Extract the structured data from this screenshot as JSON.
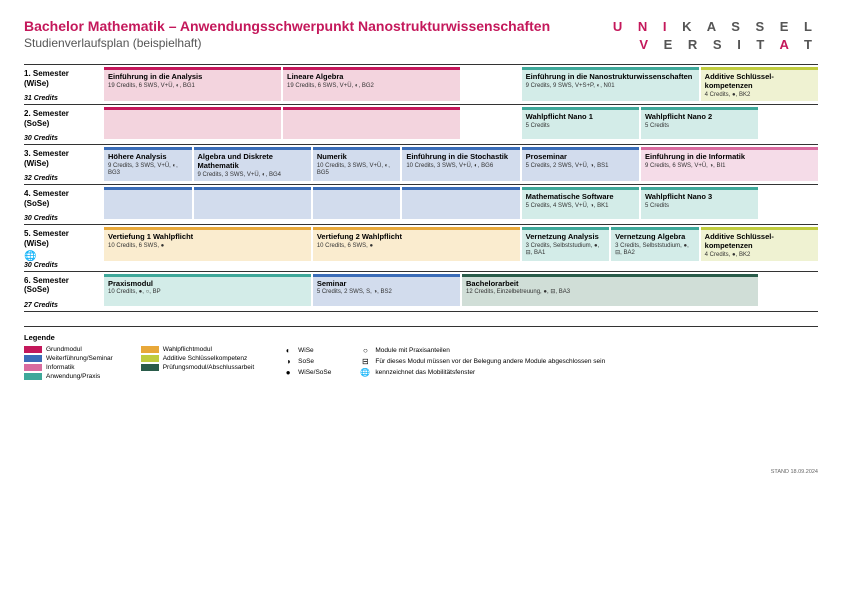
{
  "header": {
    "title": "Bachelor Mathematik – Anwendungsschwerpunkt Nanostrukturwissenschaften",
    "subtitle": "Studienverlaufsplan (beispielhaft)",
    "logo_line1": "UNIKASSEL",
    "logo_line2": "VERSITÄT"
  },
  "colors": {
    "grund": "#c4185b",
    "grund_bg": "#f3d4de",
    "weiter": "#3b6db8",
    "weiter_bg": "#d2dced",
    "informatik": "#d96b9f",
    "informatik_bg": "#f5dce8",
    "anwendung": "#3fa89a",
    "anwendung_bg": "#d3ece8",
    "wahlpflicht": "#e8a83a",
    "wahlpflicht_bg": "#faeccf",
    "additive": "#c0cc3f",
    "additive_bg": "#eff2d2",
    "pruefung": "#2a5c4a",
    "pruefung_bg": "#d0ded7"
  },
  "stand": "STAND 18.09.2024",
  "legend": {
    "title": "Legende",
    "cats": [
      {
        "c": "grund",
        "t": "Grundmodul"
      },
      {
        "c": "weiter",
        "t": "Weiterführung/Seminar"
      },
      {
        "c": "informatik",
        "t": "Informatik"
      },
      {
        "c": "anwendung",
        "t": "Anwendung/Praxis"
      },
      {
        "c": "wahlpflicht",
        "t": "Wahlpflichtmodul"
      },
      {
        "c": "additive",
        "t": "Additive Schlüsselkompetenz"
      },
      {
        "c": "pruefung",
        "t": "Prüfungsmodul/Abschlussarbeit"
      }
    ],
    "syms1": [
      {
        "s": "◐",
        "t": "WiSe"
      },
      {
        "s": "◑",
        "t": "SoSe"
      },
      {
        "s": "●",
        "t": "WiSe/SoSe"
      }
    ],
    "syms2": [
      {
        "s": "○",
        "t": "Module mit Praxisanteilen"
      },
      {
        "s": "⊟",
        "t": "Für dieses Modul müssen vor der Belegung andere Module abgeschlossen sein"
      },
      {
        "s": "🌐",
        "t": "kennzeichnet das Mobilitätsfenster"
      }
    ]
  },
  "rows": [
    {
      "sem": "1. Semester\n(WiSe)",
      "credits": "31 Credits",
      "mods": [
        {
          "col": "1/7",
          "cat": "grund",
          "t": "Einführung in die Analysis",
          "d": "19 Credits, 6 SWS, V+Ü, ◐, BG1"
        },
        {
          "col": "7/13",
          "cat": "grund",
          "t": "Lineare Algebra",
          "d": "19 Credits, 6 SWS, V+Ü, ◐, BG2"
        },
        {
          "col": "15/21",
          "cat": "anwendung",
          "t": "Einführung in die Nanostrukturwissenschaften",
          "d": "9 Credits, 9 SWS, V+S+P, ◐, N01"
        },
        {
          "col": "21/25",
          "cat": "additive",
          "t": "Additive Schlüssel-kompetenzen",
          "d": "4 Credits, ●, BK2"
        }
      ]
    },
    {
      "sem": "2. Semester\n(SoSe)",
      "credits": "30 Credits",
      "mods": [
        {
          "col": "1/7",
          "cat": "grund",
          "t": "",
          "d": ""
        },
        {
          "col": "7/13",
          "cat": "grund",
          "t": "",
          "d": ""
        },
        {
          "col": "15/19",
          "cat": "anwendung",
          "t": "Wahlpflicht Nano 1",
          "d": "5 Credits"
        },
        {
          "col": "19/23",
          "cat": "anwendung",
          "t": "Wahlpflicht Nano 2",
          "d": "5 Credits"
        }
      ]
    },
    {
      "sem": "3. Semester\n(WiSe)",
      "credits": "32 Credits",
      "mods": [
        {
          "col": "1/4",
          "cat": "weiter",
          "t": "Höhere Analysis",
          "d": "9 Credits, 3 SWS, V+Ü, ◐, BG3"
        },
        {
          "col": "4/8",
          "cat": "weiter",
          "t": "Algebra und Diskrete Mathematik",
          "d": "9 Credits, 3 SWS, V+Ü, ◐, BG4"
        },
        {
          "col": "8/11",
          "cat": "weiter",
          "t": "Numerik",
          "d": "10 Credits, 3 SWS, V+Ü, ◐, BG5"
        },
        {
          "col": "11/15",
          "cat": "weiter",
          "t": "Einführung in die Stochastik",
          "d": "10 Credits, 3 SWS, V+Ü, ◐, BG6"
        },
        {
          "col": "15/19",
          "cat": "weiter",
          "t": "Proseminar",
          "d": "5 Credits, 2 SWS, V+Ü, ◑, BS1"
        },
        {
          "col": "19/25",
          "cat": "informatik",
          "t": "Einführung in die Informatik",
          "d": "9 Credits, 6 SWS, V+Ü, ◑, BI1"
        }
      ]
    },
    {
      "sem": "4. Semester\n(SoSe)",
      "credits": "30 Credits",
      "mods": [
        {
          "col": "1/4",
          "cat": "weiter",
          "t": "",
          "d": ""
        },
        {
          "col": "4/8",
          "cat": "weiter",
          "t": "",
          "d": ""
        },
        {
          "col": "8/11",
          "cat": "weiter",
          "t": "",
          "d": ""
        },
        {
          "col": "11/15",
          "cat": "weiter",
          "t": "",
          "d": ""
        },
        {
          "col": "15/19",
          "cat": "anwendung",
          "t": "Mathematische Software",
          "d": "5 Credits, 4 SWS, V+Ü, ◑, BK1"
        },
        {
          "col": "19/23",
          "cat": "anwendung",
          "t": "Wahlpflicht Nano 3",
          "d": "5 Credits"
        }
      ]
    },
    {
      "sem": "5. Semester\n(WiSe)",
      "credits": "30 Credits",
      "globe": true,
      "mods": [
        {
          "col": "1/8",
          "cat": "wahlpflicht",
          "t": "Vertiefung 1 Wahlpflicht",
          "d": "10 Credits, 6 SWS, ●"
        },
        {
          "col": "8/15",
          "cat": "wahlpflicht",
          "t": "Vertiefung 2 Wahlpflicht",
          "d": "10 Credits, 6 SWS, ●"
        },
        {
          "col": "15/18",
          "cat": "anwendung",
          "t": "Vernetzung Analysis",
          "d": "3 Credits, Selbststudium, ●, ⊟, BA1"
        },
        {
          "col": "18/21",
          "cat": "anwendung",
          "t": "Vernetzung Algebra",
          "d": "3 Credits, Selbststudium, ●, ⊟, BA2"
        },
        {
          "col": "21/25",
          "cat": "additive",
          "t": "Additive Schlüssel-kompetenzen",
          "d": "4 Credits, ●, BK2"
        }
      ]
    },
    {
      "sem": "6. Semester\n(SoSe)",
      "credits": "27 Credits",
      "mods": [
        {
          "col": "1/8",
          "cat": "anwendung",
          "t": "Praxismodul",
          "d": "10 Credits, ●, ○, BP"
        },
        {
          "col": "8/13",
          "cat": "weiter",
          "t": "Seminar",
          "d": "5 Credits, 2 SWS, S, ◑, BS2"
        },
        {
          "col": "13/23",
          "cat": "pruefung",
          "t": "Bachelorarbeit",
          "d": "12 Credits, Einzelbetreuung, ●, ⊟, BA3"
        }
      ]
    }
  ]
}
